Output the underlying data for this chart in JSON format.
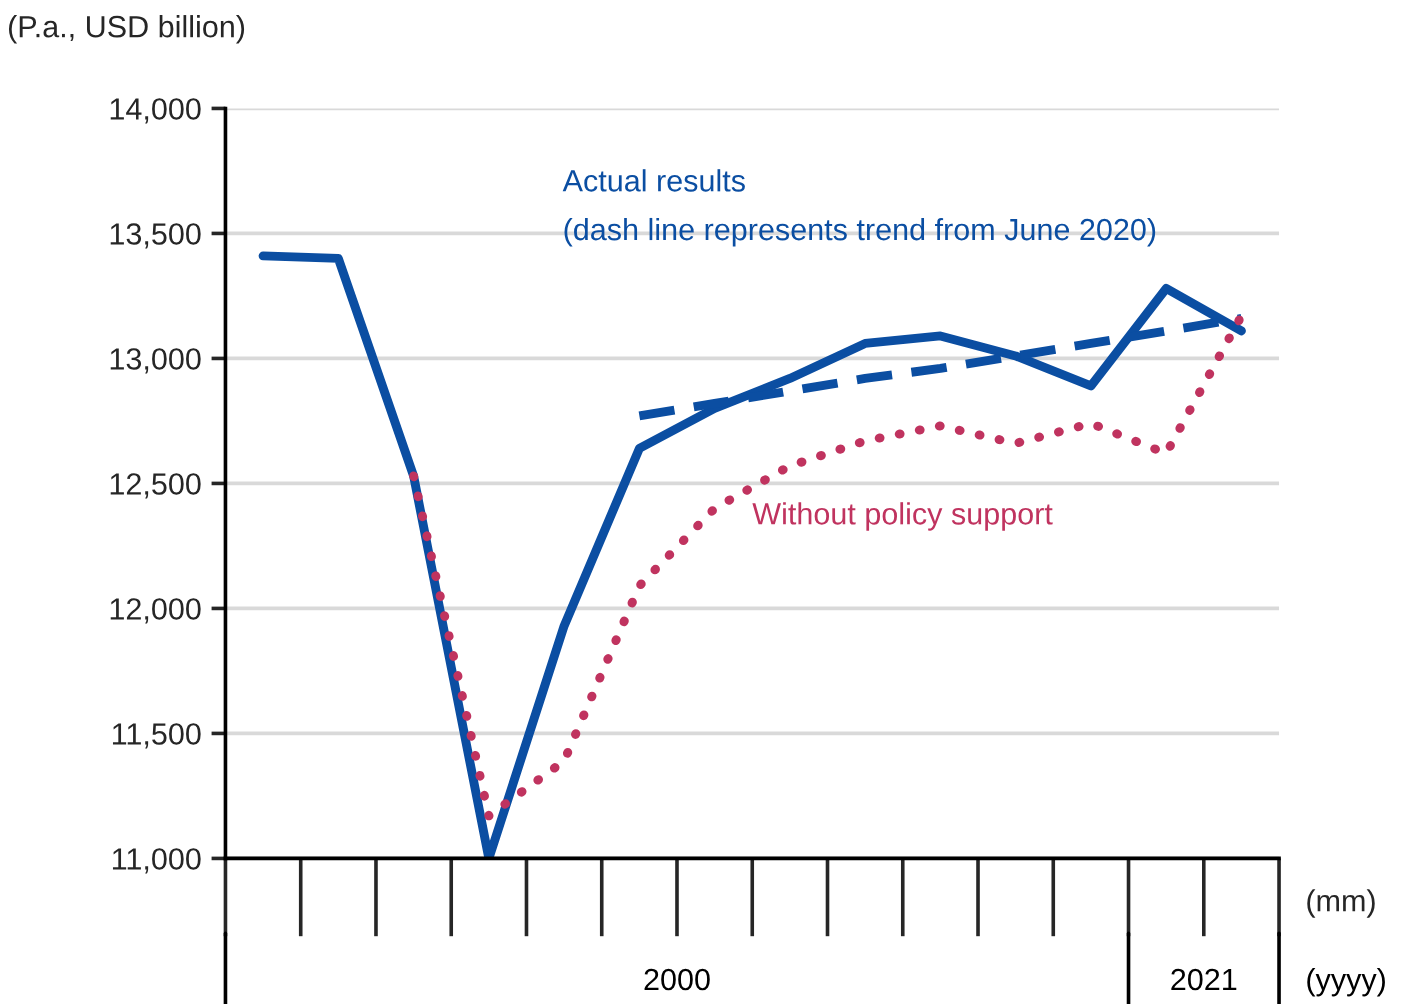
{
  "chart_data": {
    "type": "line",
    "ylabel": "(P.a., USD billion)",
    "xlabel": "(mm)",
    "categories": [
      null,
      null,
      null,
      null,
      null,
      null,
      null,
      null,
      null,
      null,
      null,
      null,
      null,
      null
    ],
    "series": [
      {
        "name": "Actual results",
        "color": "#0b4ea2",
        "line_style": "solid",
        "values": [
          13410,
          13400,
          12530,
          11000,
          11930,
          12640,
          12800,
          12920,
          13060,
          13090,
          13010,
          12890,
          13280,
          13110
        ]
      },
      {
        "color": "#0b4ea2",
        "line_style": "dashed",
        "values": [
          null,
          null,
          null,
          null,
          null,
          12770,
          12820,
          12870,
          12920,
          12960,
          13010,
          13060,
          13110,
          13160
        ]
      },
      {
        "name": "Without policy support",
        "color": "#c0335f",
        "line_style": "dotted",
        "values": [
          null,
          null,
          12530,
          11170,
          11390,
          12090,
          12400,
          12570,
          12670,
          12730,
          12660,
          12740,
          12620,
          13170
        ]
      }
    ],
    "annotations": [
      "(dash line represents trend from June 2020)",
      "2000",
      "2021",
      "(yyyy)"
    ],
    "ylim": [
      11000,
      14000
    ],
    "yticks": [
      {
        "value": 11000,
        "label": "11,000"
      },
      {
        "value": 11500,
        "label": "11,500"
      },
      {
        "value": 12000,
        "label": "12,000"
      },
      {
        "value": 12500,
        "label": "12,500"
      },
      {
        "value": 13000,
        "label": "13,000"
      },
      {
        "value": 13500,
        "label": "13,500"
      },
      {
        "value": 14000,
        "label": "14,000"
      }
    ],
    "grid": "y",
    "legend": false
  }
}
